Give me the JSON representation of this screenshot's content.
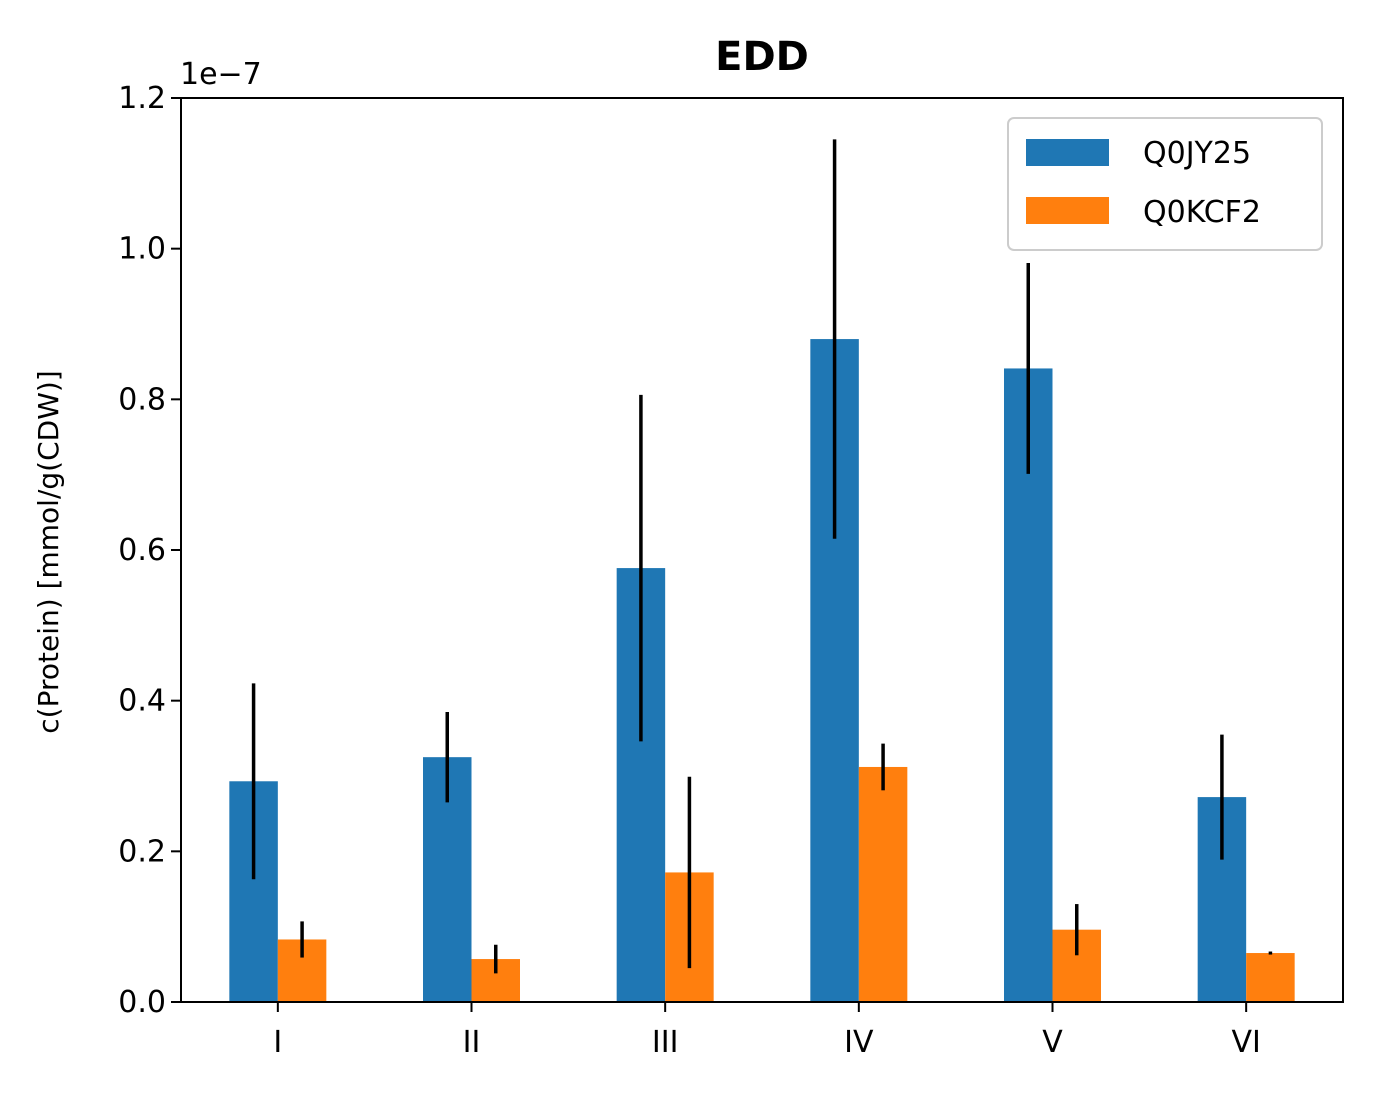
{
  "chart_data": {
    "type": "bar",
    "title": "EDD",
    "xlabel": "",
    "ylabel": "c(Protein) [mmol/g(CDW)]",
    "y_offset_label": "1e−7",
    "y_scale": 1e-07,
    "ylim": [
      0,
      1.2
    ],
    "y_ticks": [
      0.0,
      0.2,
      0.4,
      0.6,
      0.8,
      1.0,
      1.2
    ],
    "y_tick_labels": [
      "0.0",
      "0.2",
      "0.4",
      "0.6",
      "0.8",
      "1.0",
      "1.2"
    ],
    "categories": [
      "I",
      "II",
      "III",
      "IV",
      "V",
      "VI"
    ],
    "series": [
      {
        "name": "Q0JY25",
        "color": "#1f77b4",
        "values": [
          0.293,
          0.325,
          0.576,
          0.88,
          0.841,
          0.272
        ],
        "errors": [
          0.13,
          0.06,
          0.23,
          0.265,
          0.14,
          0.083
        ]
      },
      {
        "name": "Q0KCF2",
        "color": "#ff7f0e",
        "values": [
          0.083,
          0.057,
          0.172,
          0.312,
          0.096,
          0.065
        ],
        "errors": [
          0.024,
          0.019,
          0.127,
          0.031,
          0.034,
          0.002
        ]
      }
    ],
    "error_bar_color": "#000000",
    "legend": {
      "placement": "top-right"
    },
    "grid": false
  }
}
